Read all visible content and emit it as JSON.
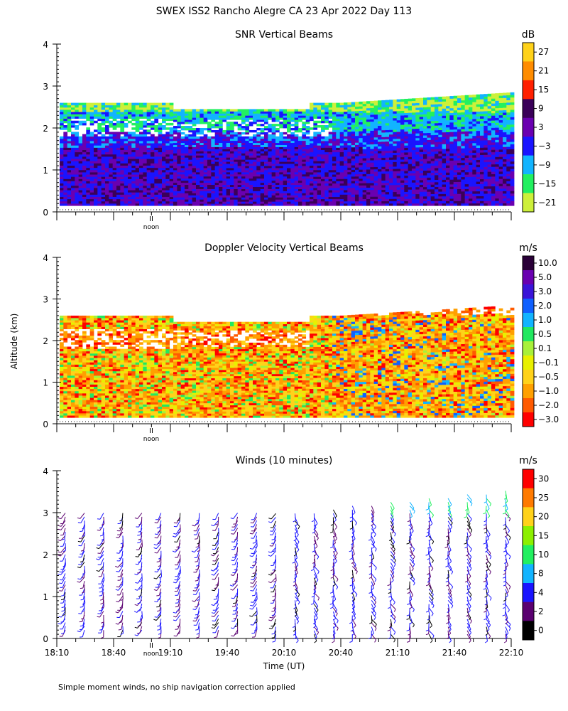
{
  "figure_title": "SWEX ISS2 Rancho Alegre CA  23 Apr 2022 Day 113",
  "shared_ylabel": "Altitude (km)",
  "footnote": "Simple moment winds, no ship navigation correction applied",
  "chart_data": [
    {
      "type": "heatmap",
      "title": "SNR Vertical Beams",
      "units": "dB",
      "ylim": [
        0,
        4
      ],
      "yticks": [
        "0",
        "1",
        "2",
        "3",
        "4"
      ],
      "noon_label": "noon",
      "colorbar": {
        "labels": [
          "27",
          "21",
          "15",
          "9",
          "3",
          "−3",
          "−9",
          "−15",
          "−21"
        ],
        "colors": [
          "#ffd21a",
          "#ff8c00",
          "#ff2000",
          "#3a0058",
          "#6a00b0",
          "#1a14ff",
          "#12b4ff",
          "#22f060",
          "#cdf03a"
        ]
      }
    },
    {
      "type": "heatmap",
      "title": "Doppler Velocity Vertical Beams",
      "units": "m/s",
      "ylim": [
        0,
        4
      ],
      "yticks": [
        "0",
        "1",
        "2",
        "3",
        "4"
      ],
      "noon_label": "noon",
      "colorbar": {
        "labels": [
          "10.0",
          "5.0",
          "3.0",
          "2.0",
          "1.0",
          "0.5",
          "0.1",
          "−0.1",
          "−0.5",
          "−1.0",
          "−2.0",
          "−3.0"
        ],
        "colors": [
          "#2a0038",
          "#6a00b0",
          "#3a14d8",
          "#1060ff",
          "#12b4ff",
          "#22e860",
          "#a8f03a",
          "#e8f000",
          "#ffd21a",
          "#ffa000",
          "#ff5a00",
          "#ff0000"
        ]
      }
    },
    {
      "type": "scatter",
      "title": "Winds (10 minutes)",
      "units": "m/s",
      "ylim": [
        0,
        4
      ],
      "yticks": [
        "0",
        "1",
        "2",
        "3",
        "4"
      ],
      "noon_label": "noon",
      "xlabel": "Time (UT)",
      "xticks": [
        "18:10",
        "18:40",
        "19:10",
        "19:40",
        "20:10",
        "20:40",
        "21:10",
        "21:40",
        "22:10"
      ],
      "colorbar": {
        "labels": [
          "30",
          "25",
          "20",
          "15",
          "10",
          "8",
          "4",
          "2",
          "0"
        ],
        "colors": [
          "#ff0000",
          "#ff7a00",
          "#ffd21a",
          "#8cf000",
          "#22f060",
          "#12b4ff",
          "#1a14ff",
          "#5a0070",
          "#000000"
        ]
      }
    }
  ]
}
